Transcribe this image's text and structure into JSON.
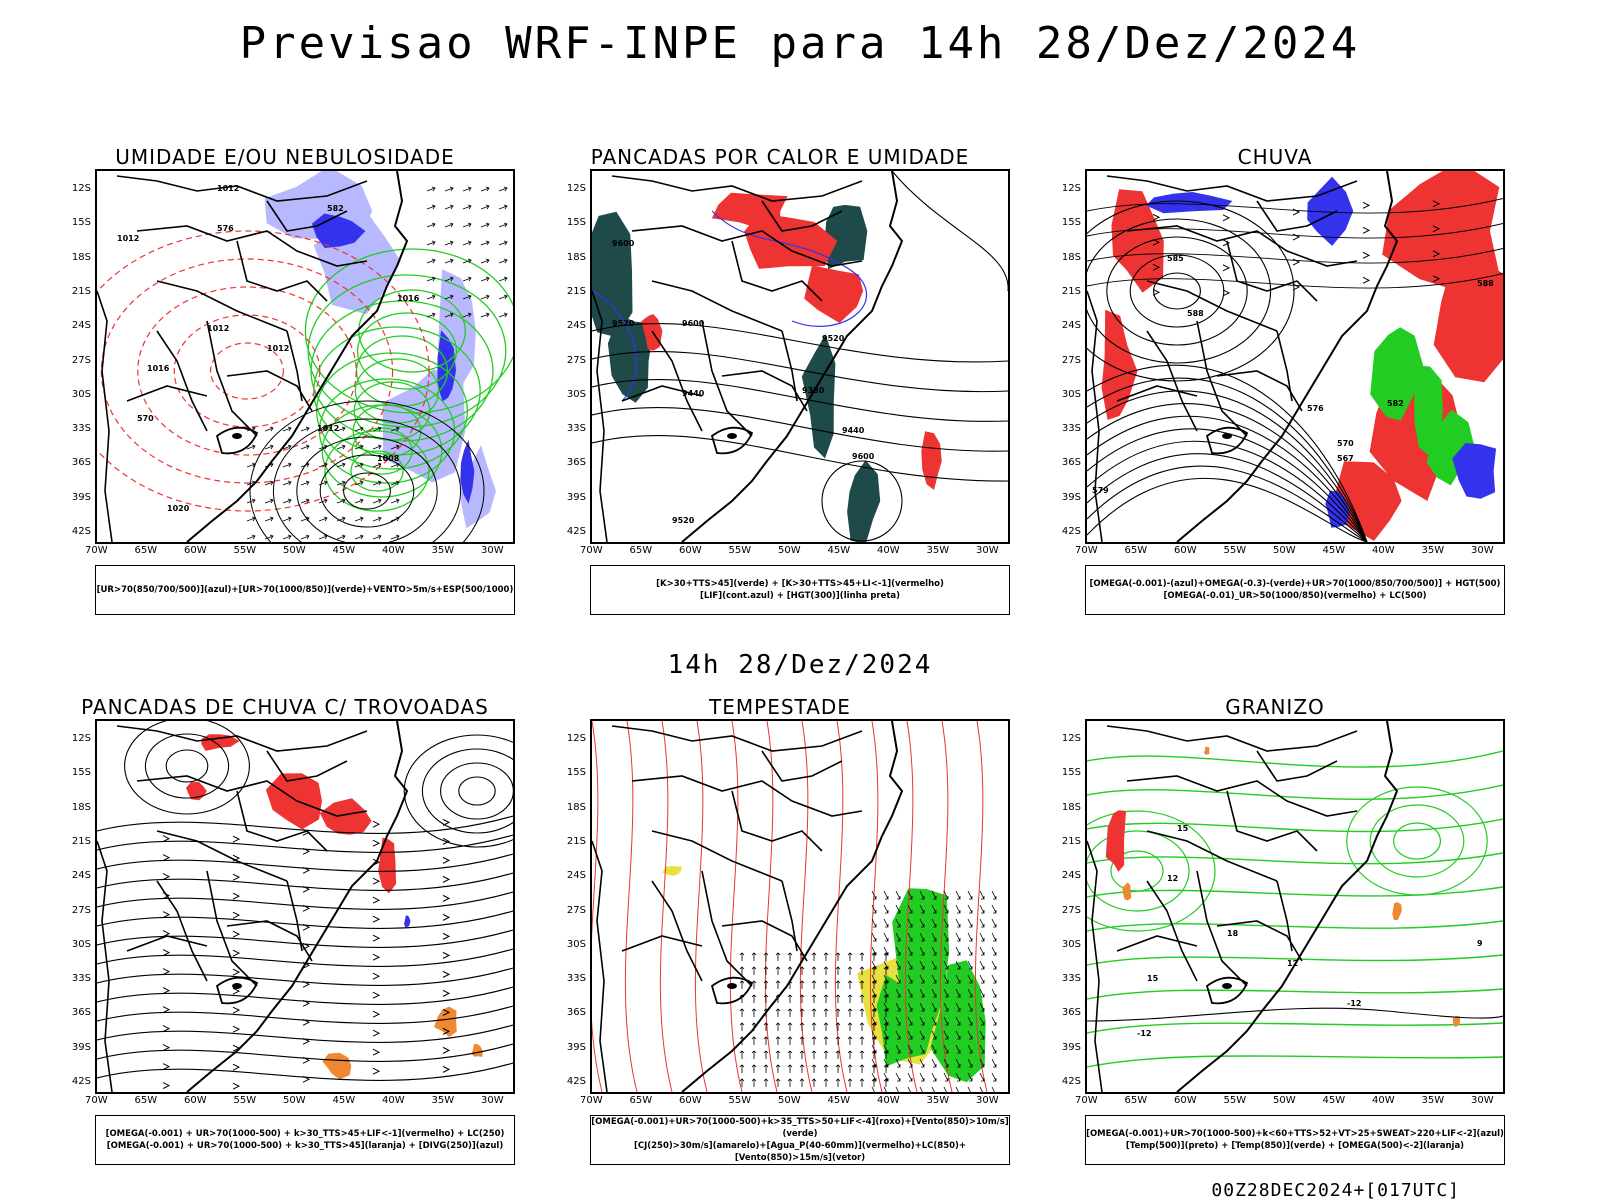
{
  "title": "Previsao WRF-INPE  para 14h 28/Dez/2024",
  "mid_label": "14h 28/Dez/2024",
  "footer": "00Z28DEC2024+[017UTC]",
  "lat_labels": [
    "12S",
    "15S",
    "18S",
    "21S",
    "24S",
    "27S",
    "30S",
    "33S",
    "36S",
    "39S",
    "42S"
  ],
  "lon_labels": [
    "70W",
    "65W",
    "60W",
    "55W",
    "50W",
    "45W",
    "40W",
    "35W",
    "30W"
  ],
  "colors": {
    "blue": "#3333ee",
    "lightblue": "#b8b8ff",
    "green": "#22cc22",
    "red": "#ee3333",
    "orange": "#ee8833",
    "yellow": "#e8e040",
    "darkteal": "#1e4a4a"
  },
  "panels": [
    {
      "title": "UMIDADE E/OU NEBULOSIDADE",
      "legend": [
        "[UR>70(850/700/500)](azul)+[UR>70(1000/850)](verde)+VENTO>5m/s+ESP(500/1000)"
      ],
      "contour_labels": [
        "1012",
        "1012",
        "1012",
        "1012",
        "1016",
        "1016",
        "1012",
        "1008",
        "1020",
        "576",
        "570",
        "582"
      ]
    },
    {
      "title": "PANCADAS POR CALOR E UMIDADE",
      "legend": [
        "[K>30+TTS>45](verde) + [K>30+TTS>45+LI<-1](vermelho)",
        "[LIF](cont.azul) + [HGT(300)](linha preta)"
      ],
      "contour_labels": [
        "9600",
        "9520",
        "9600",
        "9520",
        "9440",
        "9380",
        "9440",
        "9600",
        "9520"
      ]
    },
    {
      "title": "CHUVA",
      "legend": [
        "[OMEGA(-0.001)-(azul)+OMEGA(-0.3)-(verde)+UR>70(1000/850/700/500)] + HGT(500)",
        "[OMEGA(-0.01)_UR>50(1000/850)(vermelho) + LC(500)"
      ],
      "contour_labels": [
        "585",
        "588",
        "576",
        "570",
        "567",
        "579",
        "582",
        "588"
      ]
    },
    {
      "title": "PANCADAS DE CHUVA C/ TROVOADAS",
      "legend": [
        "[OMEGA(-0.001) + UR>70(1000-500) + k>30_TTS>45+LIF<-1](vermelho) + LC(250)",
        "[OMEGA(-0.001) + UR>70(1000-500) + k>30_TTS>45](laranja) + [DIVG(250)](azul)"
      ],
      "contour_labels": []
    },
    {
      "title": "TEMPESTADE",
      "legend": [
        "[OMEGA(-0.001)+UR>70(1000-500)+k>35_TTS>50+LIF<-4](roxo)+[Vento(850)>10m/s](verde)",
        "[CJ(250)>30m/s](amarelo)+[Agua_P(40-60mm)](vermelho)+LC(850)+[Vento(850)>15m/s](vetor)"
      ],
      "contour_labels": []
    },
    {
      "title": "GRANIZO",
      "legend": [
        "[OMEGA(-0.001)+UR>70(1000-500)+k<60+TTS>52+VT>25+SWEAT>220+LIF<-2](azul)",
        "[Temp(500)](preto) + [Temp(850)](verde) + [OMEGA(500)<-2](laranja)"
      ],
      "contour_labels": [
        "-12",
        "-12",
        "12",
        "15",
        "18",
        "15",
        "12",
        "9"
      ]
    }
  ]
}
